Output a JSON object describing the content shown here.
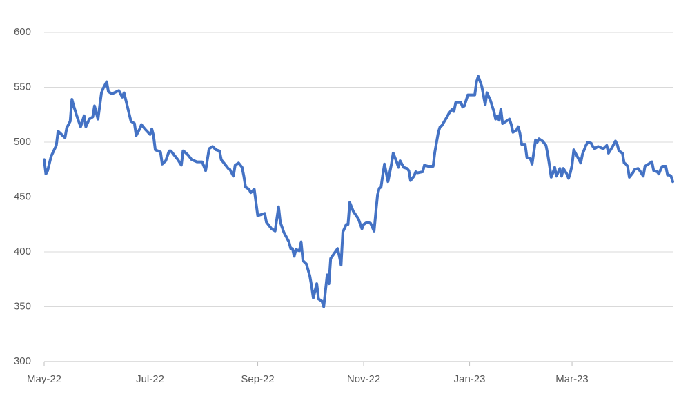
{
  "chart_data": {
    "type": "line",
    "x": [
      0,
      1,
      2,
      4,
      7,
      8,
      10,
      12,
      13,
      15,
      16,
      17,
      19,
      21,
      23,
      24,
      26,
      28,
      29,
      31,
      33,
      34,
      36,
      37,
      39,
      43,
      45,
      46,
      48,
      50,
      52,
      53,
      55,
      56,
      58,
      61,
      62,
      63,
      64,
      67,
      68,
      70,
      72,
      73,
      75,
      77,
      79,
      80,
      81,
      83,
      85,
      88,
      91,
      93,
      95,
      97,
      99,
      101,
      102,
      104,
      106,
      107,
      109,
      110,
      112,
      114,
      115,
      116,
      118,
      119,
      121,
      122,
      123,
      127,
      128,
      131,
      133,
      135,
      136,
      138,
      141,
      142,
      143,
      144,
      145,
      147,
      148,
      149,
      151,
      153,
      154,
      155,
      157,
      158,
      160,
      161,
      163,
      164,
      165,
      169,
      170,
      171,
      172,
      174,
      175,
      176,
      178,
      181,
      183,
      184,
      186,
      188,
      190,
      191,
      192,
      193,
      194,
      195,
      196,
      198,
      200,
      201,
      203,
      204,
      205,
      207,
      209,
      210,
      211,
      213,
      214,
      215,
      218,
      219,
      221,
      224,
      225,
      227,
      228,
      229,
      232,
      233,
      235,
      236,
      237,
      240,
      241,
      242,
      244,
      248,
      249,
      250,
      252,
      254,
      255,
      257,
      259,
      260,
      261,
      262,
      263,
      264,
      266,
      268,
      269,
      270,
      272,
      273,
      274,
      275,
      277,
      278,
      280,
      281,
      283,
      284,
      285,
      287,
      289,
      290,
      291,
      292,
      293,
      294,
      295,
      297,
      298,
      299,
      301,
      302,
      303,
      304,
      305,
      307,
      309,
      310,
      312,
      313,
      315,
      316,
      317,
      319,
      322,
      324,
      325,
      327,
      329,
      330,
      331,
      333,
      334,
      335,
      336,
      337,
      339,
      340,
      342,
      343,
      345,
      346,
      348,
      350,
      351,
      353,
      354,
      355,
      356,
      358,
      359,
      360,
      361,
      362
    ],
    "series": [
      {
        "color": "#4472c4",
        "values": [
          484,
          471,
          474,
          487,
          497,
          510,
          507,
          504,
          513,
          519,
          539,
          533,
          523,
          514,
          524,
          514,
          521,
          523,
          533,
          521,
          545,
          549,
          555,
          546,
          544,
          547,
          541,
          545,
          532,
          519,
          517,
          506,
          512,
          516,
          512,
          507,
          512,
          506,
          493,
          491,
          480,
          483,
          492,
          492,
          488,
          484,
          479,
          492,
          491,
          488,
          484,
          482,
          482,
          474,
          494,
          496,
          493,
          492,
          484,
          480,
          476,
          475,
          469,
          479,
          481,
          477,
          469,
          459,
          457,
          454,
          457,
          445,
          433,
          435,
          427,
          421,
          419,
          441,
          427,
          418,
          409,
          403,
          403,
          396,
          402,
          401,
          409,
          392,
          389,
          378,
          369,
          358,
          371,
          357,
          355,
          350,
          379,
          371,
          394,
          403,
          396,
          388,
          418,
          425,
          425,
          445,
          437,
          430,
          421,
          425,
          427,
          426,
          419,
          436,
          452,
          458,
          459,
          470,
          480,
          464,
          480,
          490,
          482,
          477,
          483,
          477,
          476,
          474,
          465,
          469,
          473,
          472,
          473,
          479,
          478,
          478,
          491,
          509,
          514,
          515,
          523,
          526,
          530,
          528,
          536,
          536,
          532,
          533,
          543,
          543,
          555,
          560,
          551,
          534,
          545,
          538,
          528,
          521,
          524,
          520,
          530,
          517,
          519,
          521,
          516,
          509,
          511,
          514,
          508,
          498,
          498,
          486,
          485,
          480,
          502,
          500,
          503,
          501,
          497,
          489,
          479,
          468,
          472,
          477,
          469,
          476,
          469,
          476,
          471,
          467,
          472,
          479,
          493,
          487,
          481,
          489,
          497,
          500,
          499,
          496,
          494,
          496,
          494,
          497,
          490,
          495,
          501,
          498,
          492,
          490,
          481,
          480,
          478,
          468,
          472,
          475,
          476,
          474,
          469,
          478,
          480,
          482,
          474,
          473,
          471,
          475,
          478,
          478,
          470,
          470,
          469,
          464
        ]
      }
    ],
    "xlim": [
      0,
      362
    ],
    "xticks": [
      {
        "value": 0,
        "label": "May-22"
      },
      {
        "value": 61,
        "label": "Jul-22"
      },
      {
        "value": 123,
        "label": "Sep-22"
      },
      {
        "value": 184,
        "label": "Nov-22"
      },
      {
        "value": 245,
        "label": "Jan-23"
      },
      {
        "value": 304,
        "label": "Mar-23"
      }
    ],
    "ylim": [
      300,
      600
    ],
    "yticks": [
      300,
      350,
      400,
      450,
      500,
      550,
      600
    ],
    "grid": true
  }
}
